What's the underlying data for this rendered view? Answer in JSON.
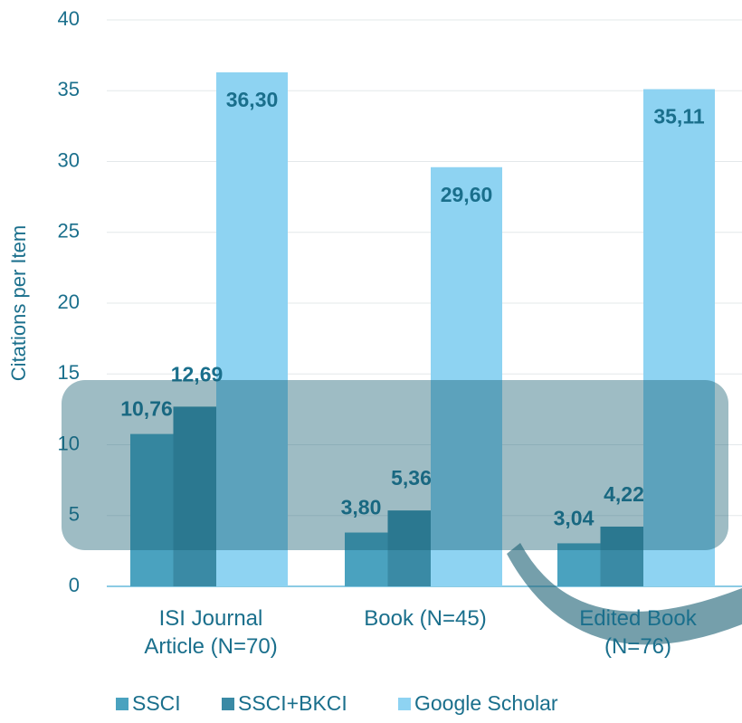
{
  "chart_data": {
    "type": "bar",
    "y_label": "Citations per Item",
    "categories": [
      "ISI Journal\nArticle (N=70)",
      "Book (N=45)",
      "Edited Book\n(N=76)"
    ],
    "series": [
      {
        "name": "SSCI",
        "color": "#4aa2bf",
        "values": [
          10.76,
          3.8,
          3.04
        ],
        "value_labels": [
          "10,76",
          "3,80",
          "3,04"
        ]
      },
      {
        "name": "SSCI+BKCI",
        "color": "#3a8aa5",
        "values": [
          12.69,
          5.36,
          4.22
        ],
        "value_labels": [
          "12,69",
          "5,36",
          "4,22"
        ]
      },
      {
        "name": "Google Scholar",
        "color": "#8ed3f2",
        "values": [
          36.3,
          29.6,
          35.11
        ],
        "value_labels": [
          "36,30",
          "29,60",
          "35,11"
        ]
      }
    ],
    "ylim": [
      0,
      40
    ],
    "yticks": [
      0,
      5,
      10,
      15,
      20,
      25,
      30,
      35,
      40
    ],
    "grid": true
  }
}
